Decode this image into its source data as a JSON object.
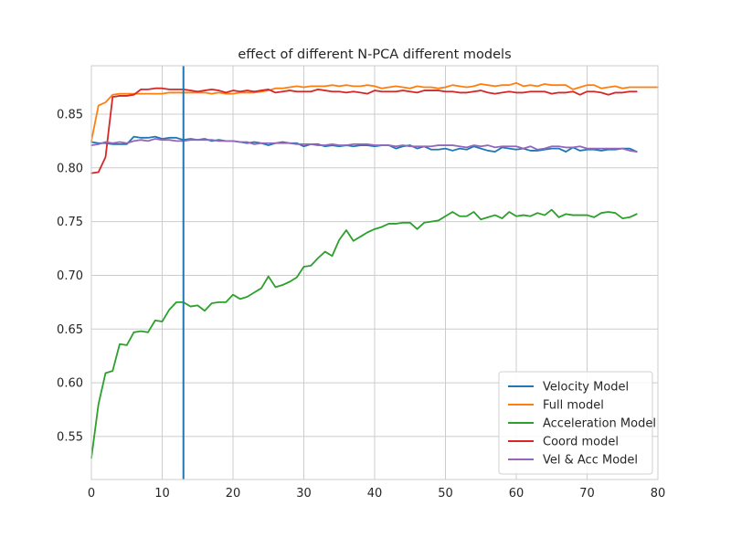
{
  "chart_data": {
    "type": "line",
    "title": "effect of different N-PCA different models",
    "xlabel": "",
    "ylabel": "",
    "xlim": [
      0,
      80
    ],
    "ylim": [
      0.51,
      0.895
    ],
    "xticks": [
      0,
      10,
      20,
      30,
      40,
      50,
      60,
      70,
      80
    ],
    "yticks": [
      0.55,
      0.6,
      0.65,
      0.7,
      0.75,
      0.8,
      0.85
    ],
    "grid": true,
    "legend_position": "lower-right",
    "vline": {
      "x": 13,
      "color": "#1f77b4"
    },
    "series": [
      {
        "name": "Velocity Model",
        "color": "#1f77b4",
        "x": [
          0,
          1,
          2,
          3,
          4,
          5,
          6,
          7,
          8,
          9,
          10,
          11,
          12,
          13,
          14,
          15,
          16,
          17,
          18,
          19,
          20,
          21,
          22,
          23,
          24,
          25,
          26,
          27,
          28,
          29,
          30,
          31,
          32,
          33,
          34,
          35,
          36,
          37,
          38,
          39,
          40,
          41,
          42,
          43,
          44,
          45,
          46,
          47,
          48,
          49,
          50,
          51,
          52,
          53,
          54,
          55,
          56,
          57,
          58,
          59,
          60,
          61,
          62,
          63,
          64,
          65,
          66,
          67,
          68,
          69,
          70,
          71,
          72,
          73,
          74,
          75,
          76,
          77
        ],
        "y": [
          0.824,
          0.823,
          0.823,
          0.822,
          0.822,
          0.822,
          0.829,
          0.828,
          0.828,
          0.829,
          0.827,
          0.828,
          0.828,
          0.826,
          0.827,
          0.826,
          0.827,
          0.825,
          0.826,
          0.825,
          0.825,
          0.824,
          0.823,
          0.824,
          0.823,
          0.821,
          0.823,
          0.824,
          0.823,
          0.823,
          0.82,
          0.822,
          0.822,
          0.82,
          0.821,
          0.82,
          0.821,
          0.82,
          0.821,
          0.821,
          0.82,
          0.821,
          0.821,
          0.818,
          0.82,
          0.821,
          0.818,
          0.82,
          0.817,
          0.817,
          0.818,
          0.816,
          0.818,
          0.817,
          0.82,
          0.818,
          0.816,
          0.815,
          0.819,
          0.818,
          0.817,
          0.818,
          0.816,
          0.816,
          0.817,
          0.818,
          0.818,
          0.815,
          0.819,
          0.816,
          0.817,
          0.817,
          0.816,
          0.817,
          0.817,
          0.818,
          0.818,
          0.815
        ]
      },
      {
        "name": "Full model",
        "color": "#ff7f0e",
        "x": [
          0,
          1,
          2,
          3,
          4,
          5,
          6,
          7,
          8,
          9,
          10,
          11,
          12,
          13,
          14,
          15,
          16,
          17,
          18,
          19,
          20,
          21,
          22,
          23,
          24,
          25,
          26,
          27,
          28,
          29,
          30,
          31,
          32,
          33,
          34,
          35,
          36,
          37,
          38,
          39,
          40,
          41,
          42,
          43,
          44,
          45,
          46,
          47,
          48,
          49,
          50,
          51,
          52,
          53,
          54,
          55,
          56,
          57,
          58,
          59,
          60,
          61,
          62,
          63,
          64,
          65,
          66,
          67,
          68,
          69,
          70,
          71,
          72,
          73,
          74,
          75,
          76,
          77,
          78,
          79,
          80
        ],
        "y": [
          0.825,
          0.858,
          0.861,
          0.868,
          0.869,
          0.869,
          0.869,
          0.869,
          0.869,
          0.869,
          0.869,
          0.87,
          0.87,
          0.87,
          0.87,
          0.87,
          0.87,
          0.869,
          0.87,
          0.869,
          0.869,
          0.87,
          0.87,
          0.87,
          0.871,
          0.872,
          0.874,
          0.874,
          0.875,
          0.876,
          0.875,
          0.876,
          0.876,
          0.876,
          0.877,
          0.876,
          0.877,
          0.876,
          0.876,
          0.877,
          0.876,
          0.874,
          0.875,
          0.876,
          0.875,
          0.874,
          0.876,
          0.875,
          0.875,
          0.874,
          0.875,
          0.877,
          0.876,
          0.875,
          0.876,
          0.878,
          0.877,
          0.876,
          0.877,
          0.877,
          0.879,
          0.876,
          0.877,
          0.876,
          0.878,
          0.877,
          0.877,
          0.877,
          0.873,
          0.875,
          0.877,
          0.877,
          0.874,
          0.875,
          0.876,
          0.874,
          0.875,
          0.875,
          0.875,
          0.875,
          0.875
        ]
      },
      {
        "name": "Acceleration Model",
        "color": "#2ca02c",
        "x": [
          0,
          1,
          2,
          3,
          4,
          5,
          6,
          7,
          8,
          9,
          10,
          11,
          12,
          13,
          14,
          15,
          16,
          17,
          18,
          19,
          20,
          21,
          22,
          23,
          24,
          25,
          26,
          27,
          28,
          29,
          30,
          31,
          32,
          33,
          34,
          35,
          36,
          37,
          38,
          39,
          40,
          41,
          42,
          43,
          44,
          45,
          46,
          47,
          48,
          49,
          50,
          51,
          52,
          53,
          54,
          55,
          56,
          57,
          58,
          59,
          60,
          61,
          62,
          63,
          64,
          65,
          66,
          67,
          68,
          69,
          70,
          71,
          72,
          73,
          74,
          75,
          76,
          77
        ],
        "y": [
          0.53,
          0.58,
          0.609,
          0.611,
          0.636,
          0.635,
          0.647,
          0.648,
          0.647,
          0.658,
          0.657,
          0.668,
          0.675,
          0.675,
          0.671,
          0.672,
          0.667,
          0.674,
          0.675,
          0.675,
          0.682,
          0.678,
          0.68,
          0.684,
          0.688,
          0.699,
          0.689,
          0.691,
          0.694,
          0.698,
          0.708,
          0.709,
          0.716,
          0.722,
          0.718,
          0.733,
          0.742,
          0.732,
          0.736,
          0.74,
          0.743,
          0.745,
          0.748,
          0.748,
          0.749,
          0.749,
          0.743,
          0.749,
          0.75,
          0.751,
          0.755,
          0.759,
          0.755,
          0.755,
          0.759,
          0.752,
          0.754,
          0.756,
          0.753,
          0.759,
          0.755,
          0.756,
          0.755,
          0.758,
          0.756,
          0.761,
          0.754,
          0.757,
          0.756,
          0.756,
          0.756,
          0.754,
          0.758,
          0.759,
          0.758,
          0.753,
          0.754,
          0.757
        ]
      },
      {
        "name": "Coord model",
        "color": "#d62728",
        "x": [
          0,
          1,
          2,
          3,
          4,
          5,
          6,
          7,
          8,
          9,
          10,
          11,
          12,
          13,
          14,
          15,
          16,
          17,
          18,
          19,
          20,
          21,
          22,
          23,
          24,
          25,
          26,
          27,
          28,
          29,
          30,
          31,
          32,
          33,
          34,
          35,
          36,
          37,
          38,
          39,
          40,
          41,
          42,
          43,
          44,
          45,
          46,
          47,
          48,
          49,
          50,
          51,
          52,
          53,
          54,
          55,
          56,
          57,
          58,
          59,
          60,
          61,
          62,
          63,
          64,
          65,
          66,
          67,
          68,
          69,
          70,
          71,
          72,
          73,
          74,
          75,
          76,
          77
        ],
        "y": [
          0.795,
          0.796,
          0.81,
          0.866,
          0.867,
          0.867,
          0.868,
          0.873,
          0.873,
          0.874,
          0.874,
          0.873,
          0.873,
          0.873,
          0.872,
          0.871,
          0.872,
          0.873,
          0.872,
          0.87,
          0.872,
          0.871,
          0.872,
          0.871,
          0.872,
          0.873,
          0.87,
          0.871,
          0.872,
          0.871,
          0.871,
          0.871,
          0.873,
          0.872,
          0.871,
          0.871,
          0.87,
          0.871,
          0.87,
          0.869,
          0.872,
          0.871,
          0.871,
          0.871,
          0.872,
          0.871,
          0.87,
          0.872,
          0.872,
          0.872,
          0.871,
          0.871,
          0.87,
          0.87,
          0.871,
          0.872,
          0.87,
          0.869,
          0.87,
          0.871,
          0.87,
          0.87,
          0.871,
          0.871,
          0.871,
          0.869,
          0.87,
          0.87,
          0.871,
          0.868,
          0.871,
          0.871,
          0.87,
          0.868,
          0.87,
          0.87,
          0.871,
          0.871
        ]
      },
      {
        "name": "Vel & Acc Model",
        "color": "#9467bd",
        "x": [
          0,
          1,
          2,
          3,
          4,
          5,
          6,
          7,
          8,
          9,
          10,
          11,
          12,
          13,
          14,
          15,
          16,
          17,
          18,
          19,
          20,
          21,
          22,
          23,
          24,
          25,
          26,
          27,
          28,
          29,
          30,
          31,
          32,
          33,
          34,
          35,
          36,
          37,
          38,
          39,
          40,
          41,
          42,
          43,
          44,
          45,
          46,
          47,
          48,
          49,
          50,
          51,
          52,
          53,
          54,
          55,
          56,
          57,
          58,
          59,
          60,
          61,
          62,
          63,
          64,
          65,
          66,
          67,
          68,
          69,
          70,
          71,
          72,
          73,
          74,
          75,
          76,
          77
        ],
        "y": [
          0.821,
          0.822,
          0.824,
          0.823,
          0.824,
          0.823,
          0.825,
          0.826,
          0.825,
          0.827,
          0.826,
          0.826,
          0.825,
          0.825,
          0.826,
          0.826,
          0.826,
          0.826,
          0.825,
          0.825,
          0.825,
          0.824,
          0.824,
          0.822,
          0.823,
          0.823,
          0.823,
          0.823,
          0.823,
          0.822,
          0.822,
          0.822,
          0.821,
          0.821,
          0.822,
          0.821,
          0.821,
          0.822,
          0.822,
          0.822,
          0.821,
          0.821,
          0.821,
          0.82,
          0.821,
          0.82,
          0.82,
          0.82,
          0.82,
          0.821,
          0.821,
          0.821,
          0.82,
          0.819,
          0.821,
          0.82,
          0.821,
          0.819,
          0.82,
          0.82,
          0.82,
          0.818,
          0.82,
          0.817,
          0.818,
          0.82,
          0.82,
          0.819,
          0.819,
          0.82,
          0.818,
          0.818,
          0.818,
          0.818,
          0.818,
          0.818,
          0.816,
          0.815
        ]
      }
    ]
  }
}
